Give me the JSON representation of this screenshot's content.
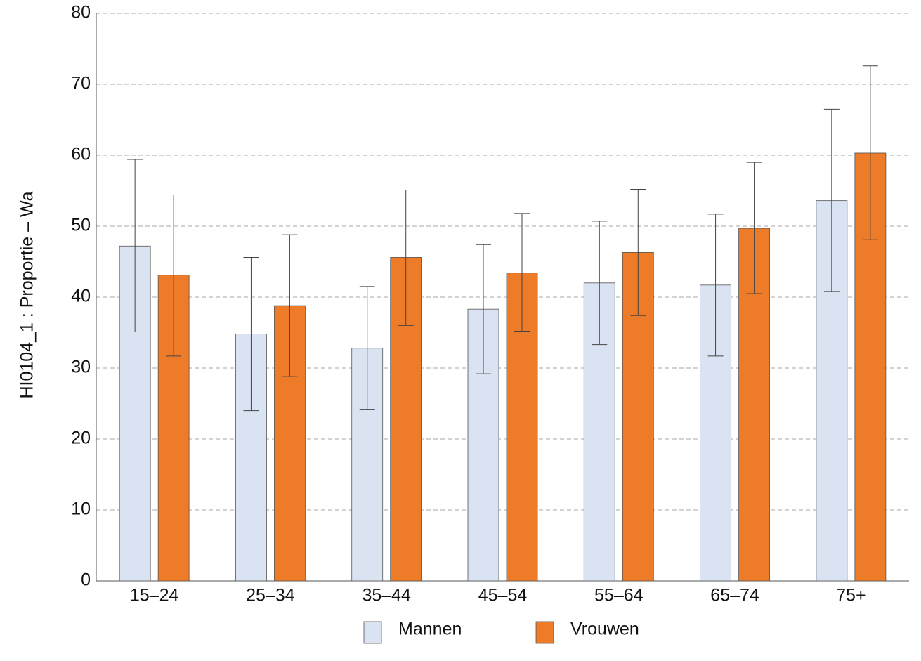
{
  "chart_data": {
    "type": "bar",
    "y_label": "HI0104_1 : Proportie – Wa",
    "categories": [
      "15–24",
      "25–34",
      "35–44",
      "45–54",
      "55–64",
      "65–74",
      "75+"
    ],
    "series": [
      {
        "name": "Mannen",
        "color": "#d9e3f2",
        "values": [
          47.2,
          34.8,
          32.8,
          38.3,
          42.0,
          41.7,
          53.6
        ],
        "lower": [
          35.1,
          24.0,
          24.2,
          29.2,
          33.3,
          31.7,
          40.8
        ],
        "upper": [
          59.4,
          45.6,
          41.5,
          47.4,
          50.7,
          51.7,
          66.5
        ]
      },
      {
        "name": "Vrouwen",
        "color": "#ee7b27",
        "values": [
          43.1,
          38.8,
          45.6,
          43.4,
          46.3,
          49.7,
          60.3
        ],
        "lower": [
          31.7,
          28.8,
          36.0,
          35.2,
          37.4,
          40.5,
          48.1
        ],
        "upper": [
          54.4,
          48.8,
          55.1,
          51.8,
          55.2,
          59.0,
          72.6
        ]
      }
    ],
    "ylim": [
      0,
      80
    ],
    "yticks": [
      0,
      10,
      20,
      30,
      40,
      50,
      60,
      70,
      80
    ],
    "grid": true
  }
}
